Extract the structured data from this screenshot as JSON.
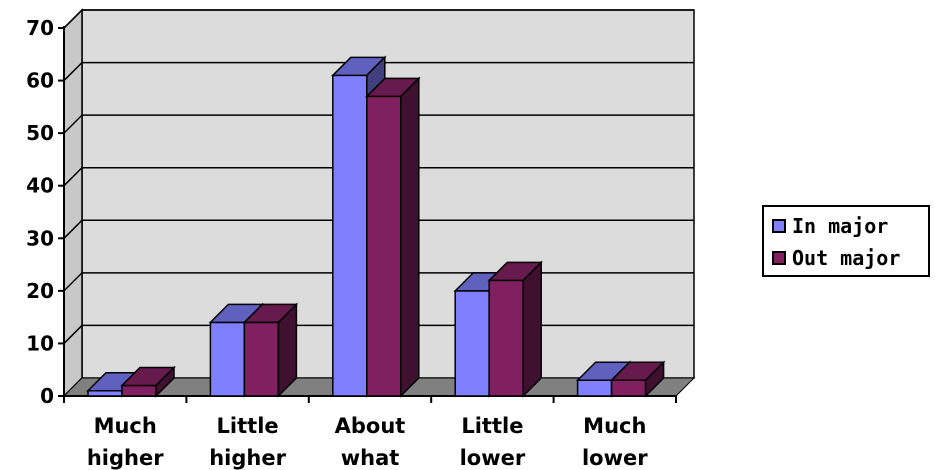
{
  "chart_data": {
    "type": "bar",
    "categories": [
      [
        "Much",
        "higher"
      ],
      [
        "Little",
        "higher"
      ],
      [
        "About",
        "what"
      ],
      [
        "Little",
        "lower"
      ],
      [
        "Much",
        "lower"
      ]
    ],
    "series": [
      {
        "name": "In major",
        "values": [
          1,
          14,
          61,
          20,
          3
        ],
        "color": "#8080ff"
      },
      {
        "name": "Out major",
        "values": [
          2,
          14,
          57,
          22,
          3
        ],
        "color": "#802060"
      }
    ],
    "ylim": [
      0,
      70
    ],
    "yticks": [
      "0",
      "10",
      "20",
      "30",
      "40",
      "50",
      "60",
      "70"
    ],
    "grid": true,
    "legend_position": "right",
    "title": "",
    "xlabel": "",
    "ylabel": ""
  }
}
